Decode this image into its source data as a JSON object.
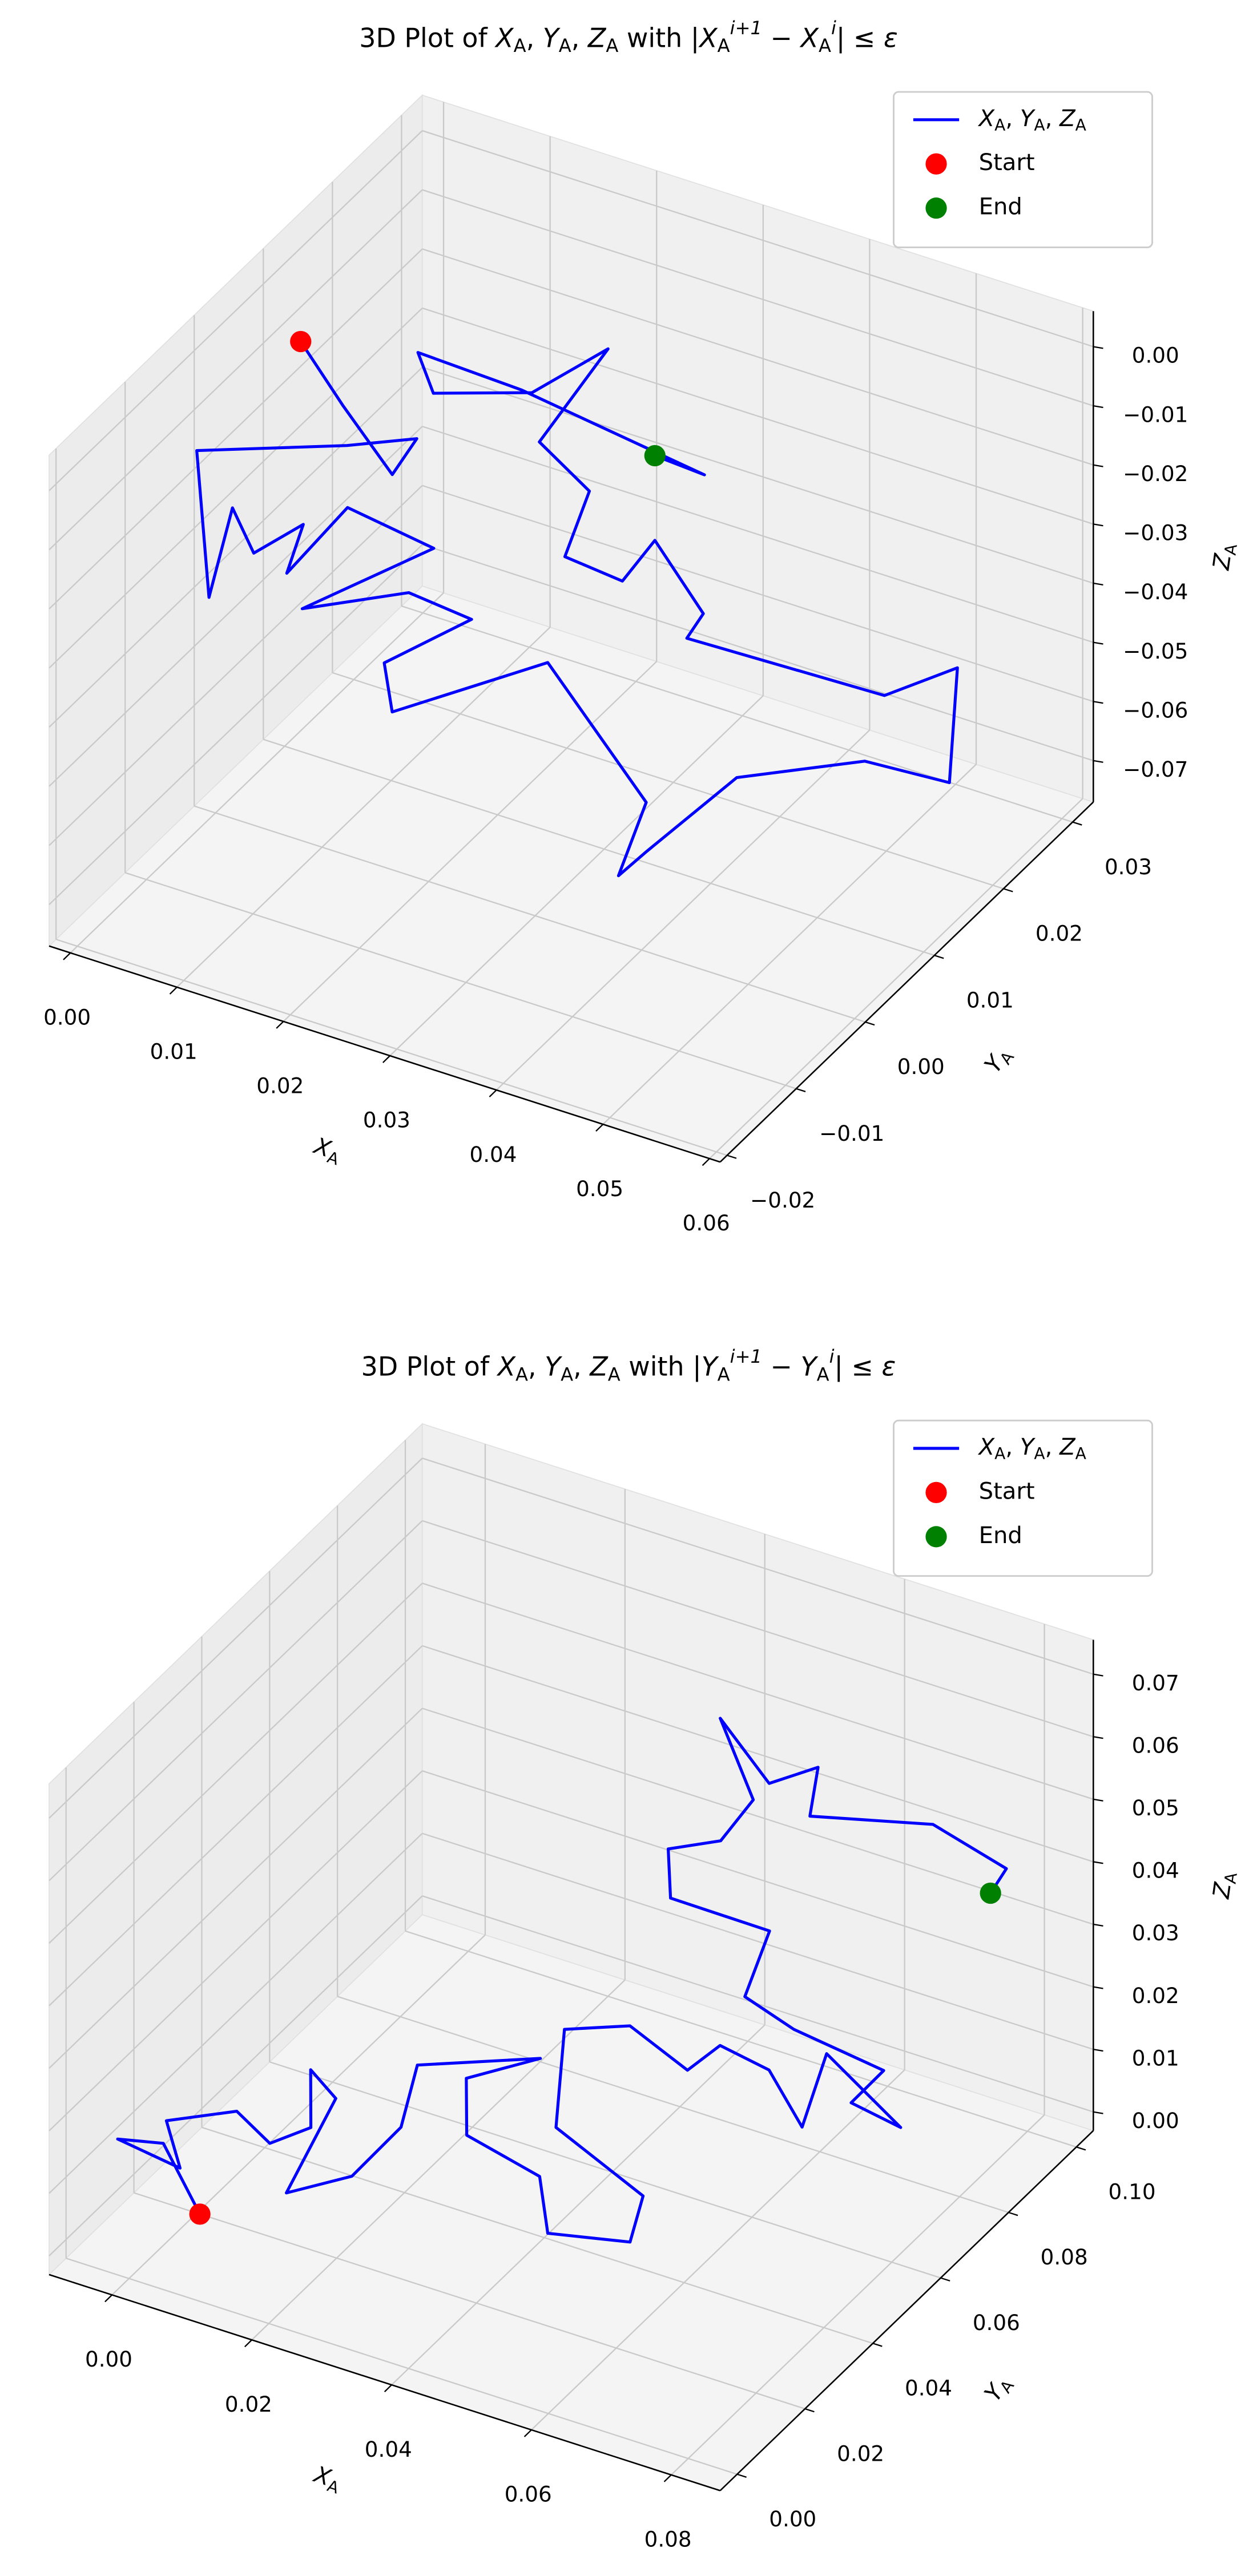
{
  "chart_data": [
    {
      "type": "line3d",
      "title": "3D Plot of X_A, Y_A, Z_A with |X_A^{i+1} − X_A^i| ≤ ε",
      "xlabel": "X_A",
      "ylabel": "Y_A",
      "zlabel": "Z_A",
      "xlim": [
        -0.002,
        0.061
      ],
      "ylim": [
        -0.021,
        0.033
      ],
      "zlim": [
        -0.077,
        0.006
      ],
      "xticks": [
        {
          "value": 0,
          "label": "0.00"
        },
        0.01,
        0.02,
        0.03,
        0.04,
        0.05,
        0.06
      ],
      "yticks": [
        {
          "value": -0.02,
          "label": "−0.02"
        },
        {
          "value": -0.01,
          "label": "−0.01"
        },
        {
          "value": 0,
          "label": "0.00"
        },
        0.01,
        0.02,
        0.03
      ],
      "zticks": [
        {
          "value": -0.07,
          "label": "−0.07"
        },
        {
          "value": -0.06,
          "label": "−0.06"
        },
        {
          "value": -0.05,
          "label": "−0.05"
        },
        {
          "value": -0.04,
          "label": "−0.04"
        },
        {
          "value": -0.03,
          "label": "−0.03"
        },
        {
          "value": -0.02,
          "label": "−0.02"
        },
        {
          "value": -0.01,
          "label": "−0.01"
        },
        {
          "value": 0,
          "label": "0.00"
        }
      ],
      "grid": true,
      "legend": "upper right",
      "series": [
        {
          "name": "X_A, Y_A, Z_A",
          "type": "line",
          "color": "#0000ff",
          "x": [
            0.0006,
            0.0046,
            0.0127,
            0.0115,
            0.0067,
            -0.0004,
            0.0025,
            0.0012,
            0.0032,
            0.0061,
            0.0063,
            0.0085,
            0.0166,
            0.0095,
            0.016,
            0.0219,
            0.0172,
            0.0197,
            0.0308,
            0.0453,
            0.0462,
            0.0471,
            0.0503,
            0.0553,
            0.058,
            0.057,
            0.0519,
            0.0386,
            0.0384,
            0.0321,
            0.0308,
            0.0254,
            0.0242,
            0.0195,
            0.0207,
            0.0153,
            0.0078,
            0.0046,
            0.0143,
            0.0315,
            0.0286
          ],
          "y": [
            0.0114,
            0.0114,
            0.006,
            0.0114,
            0.0087,
            -0.0021,
            -0.0048,
            0.0006,
            0.0006,
            0.0033,
            0.0006,
            0.006,
            0.006,
            -0.0021,
            0.0033,
            0.0033,
            -0.0021,
            -0.0048,
            0.0006,
            -0.0075,
            -0.0129,
            -0.0102,
            -0.0021,
            0.0087,
            0.0168,
            0.0195,
            0.0168,
            0.0087,
            0.0114,
            0.0141,
            0.0114,
            0.0114,
            0.0168,
            0.0168,
            0.0249,
            0.0222,
            0.0195,
            0.0222,
            0.0222,
            0.0222,
            0.0195
          ],
          "z": [
            -0.0098,
            -0.0184,
            -0.0192,
            -0.0199,
            -0.0208,
            -0.0136,
            -0.0337,
            -0.0254,
            -0.0319,
            -0.0284,
            -0.0335,
            -0.0272,
            -0.0294,
            -0.0346,
            -0.0342,
            -0.0353,
            -0.0393,
            -0.0431,
            -0.0344,
            -0.0405,
            -0.0463,
            -0.0447,
            -0.0395,
            -0.046,
            -0.0572,
            -0.0414,
            -0.046,
            -0.0349,
            -0.0339,
            -0.0282,
            -0.0328,
            -0.0318,
            -0.0275,
            -0.0219,
            -0.0146,
            -0.0221,
            -0.0235,
            -0.0215,
            -0.0222,
            -0.0266,
            -0.022
          ]
        },
        {
          "name": "Start",
          "type": "scatter",
          "color": "#ff0000",
          "x": [
            0.0006
          ],
          "y": [
            0.0114
          ],
          "z": [
            -0.0098
          ]
        },
        {
          "name": "End",
          "type": "scatter",
          "color": "#008000",
          "x": [
            0.0286
          ],
          "y": [
            0.0195
          ],
          "z": [
            -0.022
          ]
        }
      ]
    },
    {
      "type": "line3d",
      "title": "3D Plot of X_A, Y_A, Z_A with |Y_A^{i+1} − Y_A^i| ≤ ε",
      "xlabel": "X_A",
      "ylabel": "Y_A",
      "zlabel": "Z_A",
      "xlim": [
        -0.009,
        0.087
      ],
      "ylim": [
        -0.005,
        0.105
      ],
      "zlim": [
        -0.003,
        0.0755
      ],
      "xticks": [
        {
          "value": 0,
          "label": "0.00"
        },
        0.02,
        0.04,
        0.06,
        0.08
      ],
      "yticks": [
        {
          "value": 0,
          "label": "0.00"
        },
        0.02,
        0.04,
        0.06,
        0.08,
        {
          "value": 0.1,
          "label": "0.10"
        }
      ],
      "zticks": [
        {
          "value": 0,
          "label": "0.00"
        },
        0.01,
        0.02,
        0.03,
        0.04,
        0.05,
        0.06,
        0.07
      ],
      "grid": true,
      "legend": "upper right",
      "series": [
        {
          "name": "X_A, Y_A, Z_A",
          "type": "line",
          "color": "#0000ff",
          "x": [
            0.0099,
            0.002,
            -0.0072,
            0.0044,
            -0.0029,
            0.0045,
            0.0119,
            0.0151,
            0.0124,
            0.016,
            0.0196,
            0.0263,
            0.028,
            0.025,
            0.0426,
            0.032,
            0.0374,
            0.0505,
            0.057,
            0.0661,
            0.0653,
            0.0475,
            0.0407,
            0.0474,
            0.0583,
            0.0603,
            0.0673,
            0.0747,
            0.0702,
            0.0808,
            0.0737,
            0.0757,
            0.0655,
            0.0585,
            0.0567,
            0.0452,
            0.0422,
            0.0497,
            0.0517,
            0.0443,
            0.0513,
            0.0583,
            0.0598,
            0.0694,
            0.0799,
            0.0803
          ],
          "y": [
            0.0005,
            0.006,
            0.0115,
            0.006,
            0.017,
            0.0225,
            0.017,
            0.0225,
            0.028,
            0.028,
            0.006,
            0.0115,
            0.0225,
            0.0335,
            0.0335,
            0.0335,
            0.0225,
            0.017,
            0.006,
            0.0115,
            0.017,
            0.028,
            0.0445,
            0.05,
            0.0445,
            0.05,
            0.05,
            0.0445,
            0.061,
            0.061,
            0.061,
            0.0665,
            0.061,
            0.061,
            0.072,
            0.0665,
            0.072,
            0.072,
            0.0775,
            0.083,
            0.083,
            0.083,
            0.0775,
            0.094,
            0.094,
            0.0885
          ],
          "z": [
            0.0106,
            0.0162,
            0.0107,
            0.0131,
            0.0123,
            0.0136,
            0.014,
            0.0148,
            0.0202,
            0.0169,
            0.0146,
            0.0168,
            0.0195,
            0.0226,
            0.03,
            0.023,
            0.0216,
            0.0226,
            0.0216,
            0.0206,
            0.0248,
            0.0236,
            0.0282,
            0.0283,
            0.028,
            0.0298,
            0.0284,
            0.0248,
            0.0263,
            0.0183,
            0.0197,
            0.0227,
            0.0285,
            0.0312,
            0.0353,
            0.0393,
            0.0432,
            0.0472,
            0.0516,
            0.0591,
            0.0512,
            0.0563,
            0.0519,
            0.0454,
            0.0421,
            0.0412
          ]
        },
        {
          "name": "Start",
          "type": "scatter",
          "color": "#ff0000",
          "x": [
            0.0099
          ],
          "y": [
            0.0005
          ],
          "z": [
            0.0106
          ]
        },
        {
          "name": "End",
          "type": "scatter",
          "color": "#008000",
          "x": [
            0.0803
          ],
          "y": [
            0.0885
          ],
          "z": [
            0.0412
          ]
        }
      ]
    }
  ]
}
